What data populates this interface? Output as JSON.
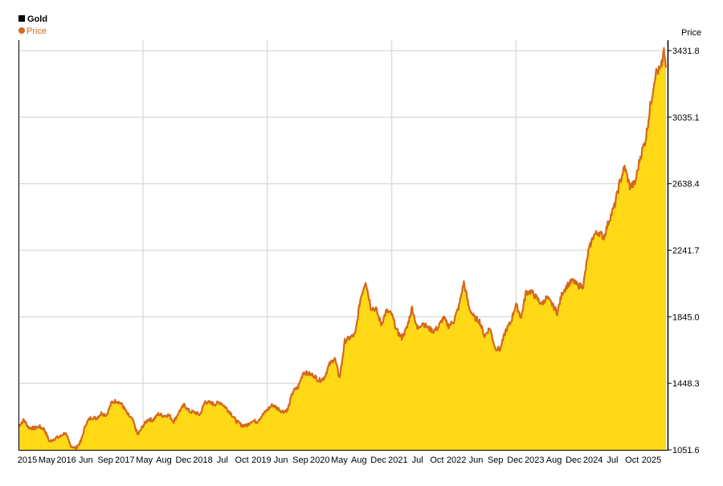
{
  "chart_data": {
    "type": "area",
    "title": "Gold",
    "legend": {
      "position": "top-left",
      "series_label": "Price"
    },
    "y_axis_title": "Price",
    "x_tick_labels": [
      "2015",
      "May",
      "2016",
      "Jun",
      "Sep",
      "2017",
      "May",
      "Aug",
      "Dec",
      "2018",
      "Jul",
      "Oct",
      "2019",
      "Jun",
      "Sep",
      "2020",
      "May",
      "Aug",
      "Dec",
      "2021",
      "Jul",
      "Oct",
      "2022",
      "Jun",
      "Sep",
      "Dec",
      "2023",
      "Aug",
      "Dec",
      "2024",
      "Jul",
      "Oct",
      "2025"
    ],
    "y_ticks": [
      1051.6,
      1448.3,
      1845.0,
      2241.7,
      2638.4,
      3035.1,
      3431.8
    ],
    "y_tick_labels": [
      "1051.6",
      "1448.3",
      "1845.0",
      "2241.7",
      "2638.4",
      "3035.1",
      "3431.8"
    ],
    "ylim": [
      1051.6,
      3431.8
    ],
    "xlim": [
      "2014-12-31",
      "2025-06-15"
    ],
    "grid": true,
    "colors": {
      "area_fill": "#FFD816",
      "line": "#D2691E",
      "legend_title_box": "#000000",
      "legend_dot": "#D2691E",
      "grid": "#DDDDDD",
      "axis": "#000000"
    },
    "series": [
      {
        "name": "Price",
        "points": [
          [
            "2015-01-01",
            1195
          ],
          [
            "2015-02-01",
            1230
          ],
          [
            "2015-03-01",
            1185
          ],
          [
            "2015-04-01",
            1180
          ],
          [
            "2015-05-01",
            1190
          ],
          [
            "2015-06-01",
            1175
          ],
          [
            "2015-07-01",
            1100
          ],
          [
            "2015-08-01",
            1120
          ],
          [
            "2015-09-01",
            1130
          ],
          [
            "2015-10-01",
            1155
          ],
          [
            "2015-11-01",
            1080
          ],
          [
            "2015-12-01",
            1060
          ],
          [
            "2016-01-01",
            1100
          ],
          [
            "2016-02-01",
            1210
          ],
          [
            "2016-03-01",
            1245
          ],
          [
            "2016-04-01",
            1240
          ],
          [
            "2016-05-01",
            1270
          ],
          [
            "2016-06-01",
            1260
          ],
          [
            "2016-07-01",
            1335
          ],
          [
            "2016-08-01",
            1345
          ],
          [
            "2016-09-01",
            1320
          ],
          [
            "2016-10-01",
            1265
          ],
          [
            "2016-11-01",
            1230
          ],
          [
            "2016-12-01",
            1140
          ],
          [
            "2017-01-01",
            1195
          ],
          [
            "2017-02-01",
            1235
          ],
          [
            "2017-03-01",
            1230
          ],
          [
            "2017-04-01",
            1265
          ],
          [
            "2017-05-01",
            1255
          ],
          [
            "2017-06-01",
            1260
          ],
          [
            "2017-07-01",
            1220
          ],
          [
            "2017-08-01",
            1280
          ],
          [
            "2017-09-01",
            1320
          ],
          [
            "2017-10-01",
            1280
          ],
          [
            "2017-11-01",
            1275
          ],
          [
            "2017-12-01",
            1260
          ],
          [
            "2018-01-01",
            1340
          ],
          [
            "2018-02-01",
            1330
          ],
          [
            "2018-03-01",
            1325
          ],
          [
            "2018-04-01",
            1335
          ],
          [
            "2018-05-01",
            1305
          ],
          [
            "2018-06-01",
            1270
          ],
          [
            "2018-07-01",
            1225
          ],
          [
            "2018-08-01",
            1200
          ],
          [
            "2018-09-01",
            1195
          ],
          [
            "2018-10-01",
            1225
          ],
          [
            "2018-11-01",
            1220
          ],
          [
            "2018-12-01",
            1255
          ],
          [
            "2019-01-01",
            1290
          ],
          [
            "2019-02-01",
            1320
          ],
          [
            "2019-03-01",
            1300
          ],
          [
            "2019-04-01",
            1280
          ],
          [
            "2019-05-01",
            1290
          ],
          [
            "2019-06-01",
            1400
          ],
          [
            "2019-07-01",
            1425
          ],
          [
            "2019-08-01",
            1515
          ],
          [
            "2019-09-01",
            1505
          ],
          [
            "2019-10-01",
            1495
          ],
          [
            "2019-11-01",
            1465
          ],
          [
            "2019-12-01",
            1480
          ],
          [
            "2020-01-01",
            1560
          ],
          [
            "2020-02-01",
            1600
          ],
          [
            "2020-03-01",
            1480
          ],
          [
            "2020-04-01",
            1700
          ],
          [
            "2020-05-01",
            1720
          ],
          [
            "2020-06-01",
            1740
          ],
          [
            "2020-07-01",
            1950
          ],
          [
            "2020-08-01",
            2060
          ],
          [
            "2020-09-01",
            1900
          ],
          [
            "2020-10-01",
            1890
          ],
          [
            "2020-11-01",
            1800
          ],
          [
            "2020-12-01",
            1880
          ],
          [
            "2021-01-01",
            1860
          ],
          [
            "2021-02-01",
            1760
          ],
          [
            "2021-03-01",
            1720
          ],
          [
            "2021-04-01",
            1780
          ],
          [
            "2021-05-01",
            1900
          ],
          [
            "2021-06-01",
            1770
          ],
          [
            "2021-07-01",
            1810
          ],
          [
            "2021-08-01",
            1780
          ],
          [
            "2021-09-01",
            1760
          ],
          [
            "2021-10-01",
            1780
          ],
          [
            "2021-11-01",
            1840
          ],
          [
            "2021-12-01",
            1790
          ],
          [
            "2022-01-01",
            1820
          ],
          [
            "2022-02-01",
            1910
          ],
          [
            "2022-03-01",
            2050
          ],
          [
            "2022-04-01",
            1900
          ],
          [
            "2022-05-01",
            1840
          ],
          [
            "2022-06-01",
            1820
          ],
          [
            "2022-07-01",
            1730
          ],
          [
            "2022-08-01",
            1780
          ],
          [
            "2022-09-01",
            1660
          ],
          [
            "2022-10-01",
            1650
          ],
          [
            "2022-11-01",
            1760
          ],
          [
            "2022-12-01",
            1810
          ],
          [
            "2023-01-01",
            1920
          ],
          [
            "2023-02-01",
            1840
          ],
          [
            "2023-03-01",
            1990
          ],
          [
            "2023-04-01",
            1995
          ],
          [
            "2023-05-01",
            1960
          ],
          [
            "2023-06-01",
            1920
          ],
          [
            "2023-07-01",
            1960
          ],
          [
            "2023-08-01",
            1920
          ],
          [
            "2023-09-01",
            1870
          ],
          [
            "2023-10-01",
            1990
          ],
          [
            "2023-11-01",
            2035
          ],
          [
            "2023-12-01",
            2060
          ],
          [
            "2024-01-01",
            2030
          ],
          [
            "2024-02-01",
            2030
          ],
          [
            "2024-03-01",
            2230
          ],
          [
            "2024-04-01",
            2330
          ],
          [
            "2024-05-01",
            2350
          ],
          [
            "2024-06-01",
            2320
          ],
          [
            "2024-07-01",
            2420
          ],
          [
            "2024-08-01",
            2500
          ],
          [
            "2024-09-01",
            2640
          ],
          [
            "2024-10-01",
            2740
          ],
          [
            "2024-11-01",
            2620
          ],
          [
            "2024-12-01",
            2640
          ],
          [
            "2025-01-01",
            2800
          ],
          [
            "2025-02-01",
            2900
          ],
          [
            "2025-03-01",
            3100
          ],
          [
            "2025-04-01",
            3300
          ],
          [
            "2025-05-01",
            3320
          ],
          [
            "2025-05-20",
            3420
          ],
          [
            "2025-06-01",
            3330
          ]
        ]
      }
    ]
  }
}
